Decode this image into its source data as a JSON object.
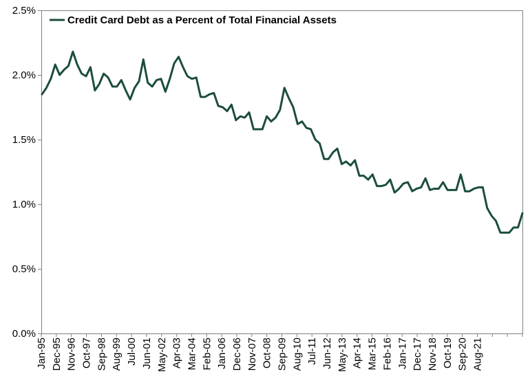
{
  "chart_data": {
    "type": "line",
    "title": "",
    "xlabel": "",
    "ylabel": "",
    "ylim": [
      0,
      2.5
    ],
    "y_ticks": [
      "0.0%",
      "0.5%",
      "1.0%",
      "1.5%",
      "2.0%",
      "2.5%"
    ],
    "y_tick_values": [
      0,
      0.5,
      1.0,
      1.5,
      2.0,
      2.5
    ],
    "x_tick_labels": [
      "Jan-95",
      "Dec-95",
      "Nov-96",
      "Oct-97",
      "Sep-98",
      "Aug-99",
      "Jul-00",
      "Jun-01",
      "May-02",
      "Apr-03",
      "Mar-04",
      "Feb-05",
      "Jan-06",
      "Dec-06",
      "Nov-07",
      "Oct-08",
      "Sep-09",
      "Aug-10",
      "Jul-11",
      "Jun-12",
      "May-13",
      "Apr-14",
      "Mar-15",
      "Feb-16",
      "Jan-17",
      "Dec-17",
      "Nov-18",
      "Oct-19",
      "Sep-20",
      "Aug-21"
    ],
    "grid": false,
    "legend_position": "top-left",
    "colors": {
      "line": "#1b4d3e",
      "axis": "#808080",
      "frame": "#808080"
    },
    "series": [
      {
        "name": "Credit Card Debt as a Percent of Total Financial Assets",
        "values": [
          1.85,
          1.9,
          1.97,
          2.08,
          2.0,
          2.04,
          2.07,
          2.18,
          2.08,
          2.01,
          1.99,
          2.06,
          1.88,
          1.93,
          2.01,
          1.98,
          1.91,
          1.91,
          1.96,
          1.88,
          1.81,
          1.9,
          1.95,
          2.12,
          1.94,
          1.91,
          1.96,
          1.97,
          1.87,
          1.97,
          2.09,
          2.14,
          2.06,
          1.99,
          1.97,
          1.98,
          1.83,
          1.83,
          1.85,
          1.86,
          1.76,
          1.75,
          1.72,
          1.77,
          1.65,
          1.68,
          1.67,
          1.71,
          1.58,
          1.58,
          1.58,
          1.68,
          1.64,
          1.67,
          1.73,
          1.9,
          1.82,
          1.75,
          1.62,
          1.64,
          1.59,
          1.58,
          1.5,
          1.47,
          1.35,
          1.35,
          1.4,
          1.43,
          1.31,
          1.33,
          1.3,
          1.34,
          1.22,
          1.22,
          1.19,
          1.23,
          1.14,
          1.14,
          1.15,
          1.19,
          1.09,
          1.12,
          1.16,
          1.17,
          1.1,
          1.12,
          1.13,
          1.2,
          1.11,
          1.12,
          1.12,
          1.17,
          1.11,
          1.11,
          1.11,
          1.23,
          1.1,
          1.1,
          1.12,
          1.13,
          1.13,
          0.97,
          0.91,
          0.87,
          0.78,
          0.78,
          0.78,
          0.82,
          0.82,
          0.93
        ]
      }
    ]
  }
}
